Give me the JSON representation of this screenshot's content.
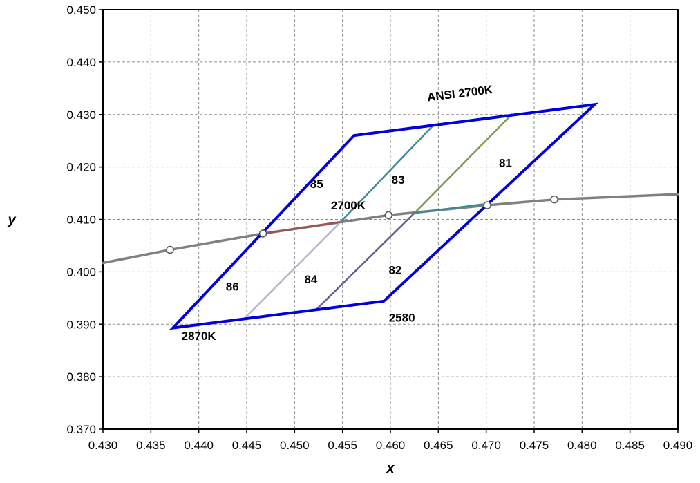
{
  "chart_data": {
    "type": "line",
    "title": "",
    "xlabel": "x",
    "ylabel": "y",
    "xlim": [
      0.43,
      0.49
    ],
    "ylim": [
      0.37,
      0.45
    ],
    "x_ticks": [
      "0.430",
      "0.435",
      "0.440",
      "0.445",
      "0.450",
      "0.455",
      "0.460",
      "0.465",
      "0.470",
      "0.475",
      "0.480",
      "0.485",
      "0.490"
    ],
    "y_ticks": [
      "0.370",
      "0.380",
      "0.390",
      "0.400",
      "0.410",
      "0.420",
      "0.430",
      "0.440",
      "0.450"
    ],
    "grid": true,
    "colors": {
      "quadrangle": "#0000dd",
      "planckian": "#808080",
      "subdivisions": [
        "#3a8a9a",
        "#7a9a50",
        "#b5b2d2",
        "#6a5a8a",
        "#a05050"
      ]
    },
    "series": [
      {
        "type": "polygon",
        "x": [
          0.4373,
          0.4562,
          0.4813,
          0.4593
        ],
        "y": [
          0.3893,
          0.426,
          0.4319,
          0.3944
        ]
      },
      {
        "type": "curve",
        "x": [
          0.43,
          0.437,
          0.4467,
          0.4598,
          0.4701,
          0.4771,
          0.49
        ],
        "y": [
          0.4017,
          0.4042,
          0.4073,
          0.4108,
          0.4127,
          0.4138,
          0.4148
        ],
        "markers": [
          {
            "x": 0.437,
            "y": 0.4042
          },
          {
            "x": 0.4467,
            "y": 0.4073
          },
          {
            "x": 0.4598,
            "y": 0.4108
          },
          {
            "x": 0.4701,
            "y": 0.4127
          },
          {
            "x": 0.4771,
            "y": 0.4138
          }
        ]
      },
      {
        "type": "segment",
        "x": [
          0.4548,
          0.4645
        ],
        "y": [
          0.4095,
          0.428
        ]
      },
      {
        "type": "segment",
        "x": [
          0.4625,
          0.4727
        ],
        "y": [
          0.4112,
          0.4301
        ]
      },
      {
        "type": "segment",
        "x": [
          0.4447,
          0.4548
        ],
        "y": [
          0.391,
          0.4095
        ]
      },
      {
        "type": "segment",
        "x": [
          0.4522,
          0.4625
        ],
        "y": [
          0.3927,
          0.4112
        ]
      },
      {
        "type": "segment",
        "x": [
          0.4467,
          0.4548
        ],
        "y": [
          0.4073,
          0.4095
        ]
      },
      {
        "type": "segment",
        "x": [
          0.4625,
          0.4701
        ],
        "y": [
          0.4112,
          0.413
        ]
      }
    ],
    "annotations": [
      {
        "text": "ANSI 2700K",
        "x": 0.4673,
        "y": 0.4333,
        "rotate": -7
      },
      {
        "text": "85",
        "x": 0.4523,
        "y": 0.416
      },
      {
        "text": "83",
        "x": 0.4608,
        "y": 0.4168
      },
      {
        "text": "81",
        "x": 0.472,
        "y": 0.42
      },
      {
        "text": "2700K",
        "x": 0.4556,
        "y": 0.4119
      },
      {
        "text": "86",
        "x": 0.4435,
        "y": 0.3964
      },
      {
        "text": "84",
        "x": 0.4517,
        "y": 0.3978
      },
      {
        "text": "82",
        "x": 0.4605,
        "y": 0.3996
      },
      {
        "text": "2580",
        "x": 0.4612,
        "y": 0.3905
      },
      {
        "text": "2870K",
        "x": 0.44,
        "y": 0.387
      }
    ]
  }
}
